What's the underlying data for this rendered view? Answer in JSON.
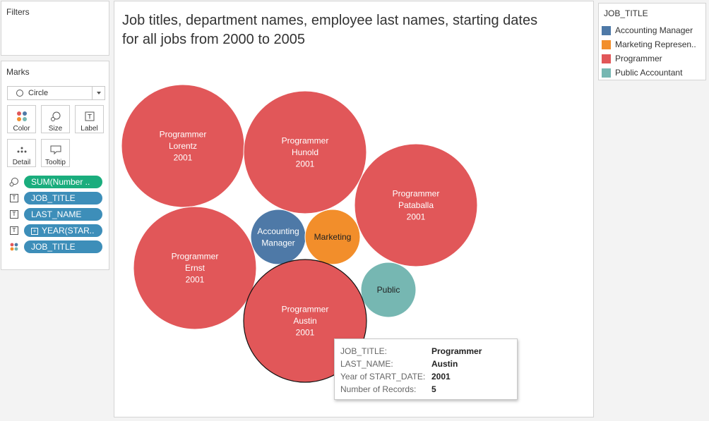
{
  "filters": {
    "title": "Filters"
  },
  "marks": {
    "title": "Marks",
    "mark_type": "Circle",
    "buttons": [
      {
        "label": "Color",
        "icon": "color-dots-icon"
      },
      {
        "label": "Size",
        "icon": "size-icon"
      },
      {
        "label": "Label",
        "icon": "label-icon"
      },
      {
        "label": "Detail",
        "icon": "detail-icon"
      },
      {
        "label": "Tooltip",
        "icon": "tooltip-icon"
      }
    ],
    "fields": [
      {
        "label": "SUM(Number ..",
        "kind": "size",
        "color": "#1aad7d"
      },
      {
        "label": "JOB_TITLE",
        "kind": "label",
        "color": "#3d8eb9"
      },
      {
        "label": "LAST_NAME",
        "kind": "label",
        "color": "#3d8eb9"
      },
      {
        "label": "YEAR(STAR..",
        "kind": "label",
        "color": "#3d8eb9"
      },
      {
        "label": "JOB_TITLE",
        "kind": "color",
        "color": "#3d8eb9"
      }
    ]
  },
  "viz": {
    "title_line1": "Job titles, department names, employee last names, starting dates",
    "title_line2": "for all jobs from 2000 to 2005"
  },
  "legend": {
    "title": "JOB_TITLE",
    "items": [
      {
        "label": "Accounting Manager",
        "color": "#4e79a7"
      },
      {
        "label": "Marketing Represen..",
        "color": "#f28e2b"
      },
      {
        "label": "Programmer",
        "color": "#e15759"
      },
      {
        "label": "Public Accountant",
        "color": "#76b7b2"
      }
    ]
  },
  "chart_data": {
    "type": "bubble",
    "size_measure": "Number of Records",
    "bubbles": [
      {
        "job_title": "Programmer",
        "label_lines": [
          "Programmer",
          "Lorentz",
          "2001"
        ],
        "last_name": "Lorentz",
        "year": 2001,
        "records": 5,
        "color": "#e15759"
      },
      {
        "job_title": "Programmer",
        "label_lines": [
          "Programmer",
          "Hunold",
          "2001"
        ],
        "last_name": "Hunold",
        "year": 2001,
        "records": 5,
        "color": "#e15759"
      },
      {
        "job_title": "Programmer",
        "label_lines": [
          "Programmer",
          "Pataballa",
          "2001"
        ],
        "last_name": "Pataballa",
        "year": 2001,
        "records": 5,
        "color": "#e15759"
      },
      {
        "job_title": "Programmer",
        "label_lines": [
          "Programmer",
          "Ernst",
          "2001"
        ],
        "last_name": "Ernst",
        "year": 2001,
        "records": 5,
        "color": "#e15759"
      },
      {
        "job_title": "Accounting Manager",
        "label_lines": [
          "Accounting",
          "Manager"
        ],
        "records": 1,
        "color": "#4e79a7"
      },
      {
        "job_title": "Marketing Representative",
        "label_lines": [
          "Marketing"
        ],
        "records": 1,
        "color": "#f28e2b"
      },
      {
        "job_title": "Public Accountant",
        "label_lines": [
          "Public"
        ],
        "records": 1,
        "color": "#76b7b2"
      },
      {
        "job_title": "Programmer",
        "label_lines": [
          "Programmer",
          "Austin",
          "2001"
        ],
        "last_name": "Austin",
        "year": 2001,
        "records": 5,
        "color": "#e15759",
        "selected": true
      }
    ]
  },
  "tooltip": {
    "rows": [
      {
        "key": "JOB_TITLE:",
        "value": "Programmer"
      },
      {
        "key": "LAST_NAME:",
        "value": "Austin"
      },
      {
        "key": "Year of START_DATE:",
        "value": "2001"
      },
      {
        "key": "Number of Records:",
        "value": "5"
      }
    ]
  }
}
